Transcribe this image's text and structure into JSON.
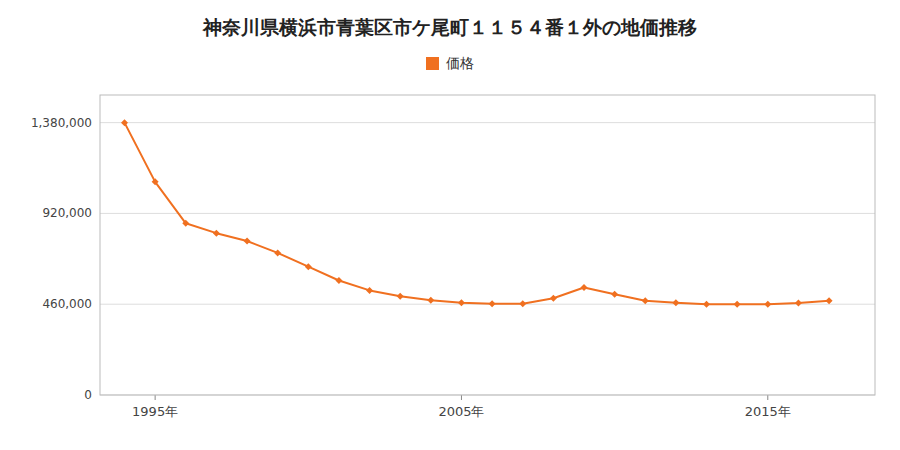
{
  "chart_data": {
    "type": "line",
    "title": "神奈川県横浜市青葉区市ケ尾町１１５４番１外の地価推移",
    "x": [
      1994,
      1995,
      1996,
      1997,
      1998,
      1999,
      2000,
      2001,
      2002,
      2003,
      2004,
      2005,
      2006,
      2007,
      2008,
      2009,
      2010,
      2011,
      2012,
      2013,
      2014,
      2015,
      2016,
      2017
    ],
    "series": [
      {
        "name": "価格",
        "color": "#f07020",
        "marker": "diamond",
        "values": [
          1380000,
          1080000,
          870000,
          820000,
          780000,
          720000,
          650000,
          580000,
          530000,
          500000,
          480000,
          467000,
          462000,
          462000,
          490000,
          545000,
          510000,
          478000,
          468000,
          460000,
          460000,
          460000,
          466000,
          478000
        ]
      }
    ],
    "xlim": [
      1993.2,
      2018.5
    ],
    "xticks": [
      {
        "value": 1995,
        "label": "1995年"
      },
      {
        "value": 2005,
        "label": "2005年"
      },
      {
        "value": 2015,
        "label": "2015年"
      }
    ],
    "ylim": [
      0,
      1520000
    ],
    "yticks": [
      0,
      {
        "value": 460000,
        "label": "460,000"
      },
      {
        "value": 920000,
        "label": "920,000"
      },
      {
        "value": 1380000,
        "label": "1,380,000"
      }
    ],
    "grid": true,
    "legend": "top"
  }
}
